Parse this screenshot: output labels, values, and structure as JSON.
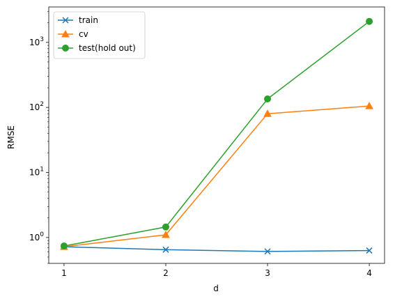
{
  "chart_data": {
    "type": "line",
    "title": "",
    "xlabel": "d",
    "ylabel": "RMSE",
    "y_scale": "log",
    "xlim": [
      0.85,
      4.15
    ],
    "ylim": [
      0.4,
      3500
    ],
    "grid": false,
    "legend_position": "top-left",
    "x": [
      1,
      2,
      3,
      4
    ],
    "x_ticks": [
      {
        "value": 1,
        "label": "1"
      },
      {
        "value": 2,
        "label": "2"
      },
      {
        "value": 3,
        "label": "3"
      },
      {
        "value": 4,
        "label": "4"
      }
    ],
    "y_ticks": [
      {
        "value": 1,
        "base": "10",
        "exp": "0"
      },
      {
        "value": 10,
        "base": "10",
        "exp": "1"
      },
      {
        "value": 100,
        "base": "10",
        "exp": "2"
      },
      {
        "value": 1000,
        "base": "10",
        "exp": "3"
      }
    ],
    "series": [
      {
        "name": "train",
        "color": "#1f77b4",
        "marker": "x",
        "values": [
          0.72,
          0.65,
          0.61,
          0.63
        ]
      },
      {
        "name": "cv",
        "color": "#ff7f0e",
        "marker": "triangle",
        "values": [
          0.72,
          1.1,
          80,
          105
        ]
      },
      {
        "name": "test(hold out)",
        "color": "#2ca02c",
        "marker": "circle",
        "values": [
          0.74,
          1.45,
          135,
          2100
        ]
      }
    ]
  }
}
